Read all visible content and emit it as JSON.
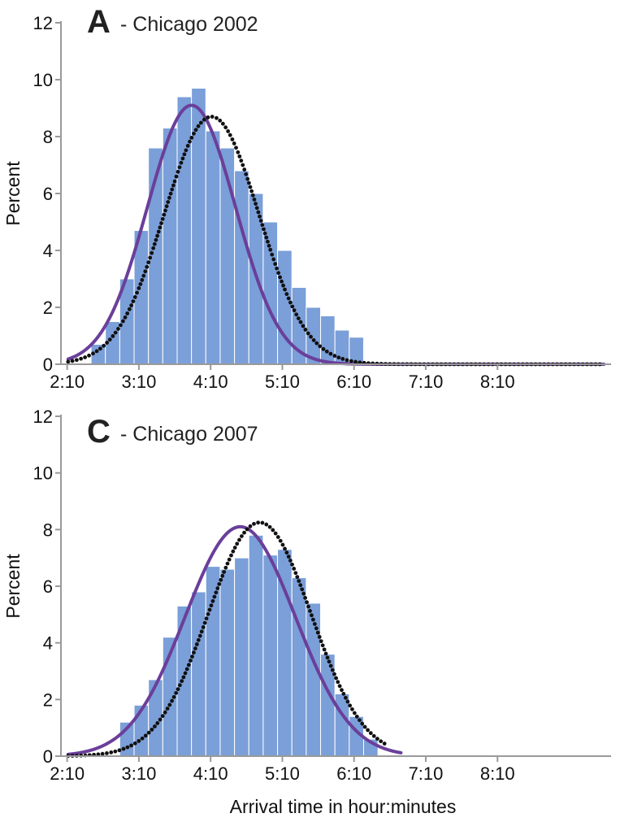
{
  "colors": {
    "bars": "#7b9fd8",
    "normal_fit": "#6a3f9a",
    "dotted_fit": "#111111"
  },
  "xlabel": "Arrival time in hour:minutes",
  "chart_data": [
    {
      "type": "bar",
      "panel_letter": "A",
      "title": "- Chicago 2002",
      "ylabel": "Percent",
      "ylim": [
        0,
        12
      ],
      "yticks": [
        0,
        2,
        4,
        6,
        8,
        10,
        12
      ],
      "xlim": [
        2.08,
        9.75
      ],
      "xticks": [
        {
          "value": 2.1667,
          "label": "2:10"
        },
        {
          "value": 3.1667,
          "label": "3:10"
        },
        {
          "value": 4.1667,
          "label": "4:10"
        },
        {
          "value": 5.1667,
          "label": "5:10"
        },
        {
          "value": 6.1667,
          "label": "6:10"
        },
        {
          "value": 7.1667,
          "label": "7:10"
        },
        {
          "value": 8.1667,
          "label": "8:10"
        }
      ],
      "bin_width": 0.2,
      "bin_starts": [
        2.5,
        2.7,
        2.9,
        3.1,
        3.3,
        3.5,
        3.7,
        3.9,
        4.1,
        4.3,
        4.5,
        4.7,
        4.9,
        5.1,
        5.3,
        5.5,
        5.7,
        5.9,
        6.1
      ],
      "values": [
        0.7,
        1.5,
        3.0,
        4.7,
        7.6,
        8.3,
        9.4,
        9.7,
        8.2,
        7.6,
        6.8,
        6.0,
        5.0,
        4.0,
        2.7,
        2.0,
        1.7,
        1.2,
        0.95
      ],
      "series": [
        {
          "name": "",
          "kind": "solid",
          "mean": 3.9,
          "sd": 0.615,
          "peak": 9.1,
          "x_range": [
            2.18,
            9.65
          ]
        },
        {
          "name": "",
          "kind": "dotted",
          "mean": 4.18,
          "sd": 0.66,
          "peak": 8.7,
          "x_range": [
            2.18,
            9.65
          ]
        }
      ]
    },
    {
      "type": "bar",
      "panel_letter": "C",
      "title": "- Chicago 2007",
      "ylabel": "Percent",
      "ylim": [
        0,
        12
      ],
      "yticks": [
        0,
        2,
        4,
        6,
        8,
        10,
        12
      ],
      "xlim": [
        2.08,
        9.75
      ],
      "xticks": [
        {
          "value": 2.1667,
          "label": "2:10"
        },
        {
          "value": 3.1667,
          "label": "3:10"
        },
        {
          "value": 4.1667,
          "label": "4:10"
        },
        {
          "value": 5.1667,
          "label": "5:10"
        },
        {
          "value": 6.1667,
          "label": "6:10"
        },
        {
          "value": 7.1667,
          "label": "7:10"
        },
        {
          "value": 8.1667,
          "label": "8:10"
        }
      ],
      "bin_width": 0.2,
      "bin_starts": [
        2.9,
        3.1,
        3.3,
        3.5,
        3.7,
        3.9,
        4.1,
        4.3,
        4.5,
        4.7,
        4.9,
        5.1,
        5.3,
        5.5,
        5.7,
        5.9,
        6.1,
        6.3
      ],
      "values": [
        1.2,
        1.8,
        2.7,
        4.2,
        5.3,
        5.8,
        6.7,
        6.6,
        7.0,
        7.8,
        7.1,
        7.3,
        6.3,
        5.4,
        3.6,
        2.2,
        1.4,
        0.6
      ],
      "series": [
        {
          "name": "",
          "kind": "solid",
          "mean": 4.58,
          "sd": 0.77,
          "peak": 8.1,
          "x_range": [
            2.18,
            6.82
          ]
        },
        {
          "name": "",
          "kind": "dotted",
          "mean": 4.85,
          "sd": 0.72,
          "peak": 8.25,
          "x_range": [
            2.18,
            6.62
          ]
        }
      ]
    }
  ]
}
